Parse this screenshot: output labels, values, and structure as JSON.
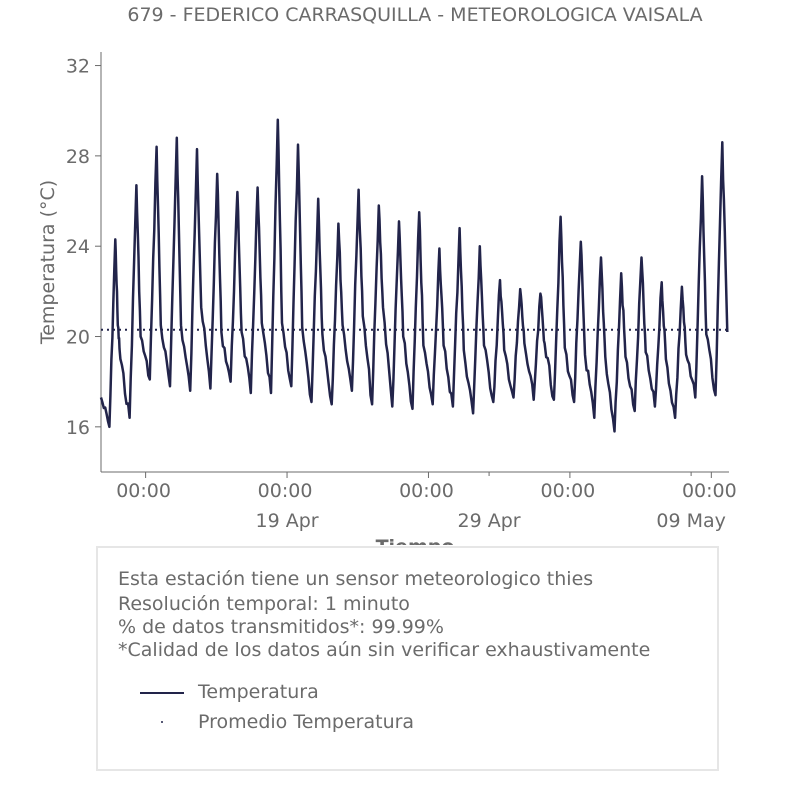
{
  "chart_data": {
    "type": "line",
    "title": "679 - FEDERICO CARRASQUILLA - METEOROLOGICA VAISALA",
    "xlabel": "Tiempo",
    "ylabel": "Temperatura (°C)",
    "ylim": [
      14,
      32.6
    ],
    "yticks": [
      16,
      20,
      24,
      28,
      32
    ],
    "xlim": [
      "2025-04-09T19:00",
      "2025-05-10T21:00"
    ],
    "xticks": [
      {
        "at": "2025-04-12T00:00",
        "label": "00:00",
        "sublabel": ""
      },
      {
        "at": "2025-04-19T00:00",
        "label": "00:00",
        "sublabel": "19 Apr"
      },
      {
        "at": "2025-04-26T00:00",
        "label": "00:00",
        "sublabel": ""
      },
      {
        "at": "2025-05-03T00:00",
        "label": "00:00",
        "sublabel": ""
      },
      {
        "at": "2025-05-10T00:00",
        "label": "00:00",
        "sublabel": ""
      }
    ],
    "extra_date_labels": [
      {
        "at": "2025-04-29T00:00",
        "label": "29 Apr"
      },
      {
        "at": "2025-05-09T00:00",
        "label": "09 May"
      }
    ],
    "series": [
      {
        "name": "Temperatura",
        "color": "#22244a",
        "style": "solid",
        "x": [
          "2025-04-09T19:00",
          "2025-04-10T05:00",
          "2025-04-10T12:00",
          "2025-04-10T15:00",
          "2025-04-10T18:00",
          "2025-04-11T05:00",
          "2025-04-11T13:00",
          "2025-04-11T18:00",
          "2025-04-12T05:00",
          "2025-04-12T13:00",
          "2025-04-12T18:00",
          "2025-04-13T05:00",
          "2025-04-13T13:00",
          "2025-04-13T18:00",
          "2025-04-14T05:00",
          "2025-04-14T13:00",
          "2025-04-14T18:00",
          "2025-04-15T05:00",
          "2025-04-15T13:00",
          "2025-04-15T18:00",
          "2025-04-16T05:00",
          "2025-04-16T13:00",
          "2025-04-16T18:00",
          "2025-04-17T05:00",
          "2025-04-17T13:00",
          "2025-04-17T18:00",
          "2025-04-18T05:00",
          "2025-04-18T13:00",
          "2025-04-18T18:00",
          "2025-04-19T05:00",
          "2025-04-19T13:00",
          "2025-04-19T18:00",
          "2025-04-20T05:00",
          "2025-04-20T13:00",
          "2025-04-20T18:00",
          "2025-04-21T05:00",
          "2025-04-21T13:00",
          "2025-04-21T18:00",
          "2025-04-22T05:00",
          "2025-04-22T13:00",
          "2025-04-22T18:00",
          "2025-04-23T05:00",
          "2025-04-23T13:00",
          "2025-04-23T18:00",
          "2025-04-24T05:00",
          "2025-04-24T13:00",
          "2025-04-24T18:00",
          "2025-04-25T05:00",
          "2025-04-25T13:00",
          "2025-04-25T18:00",
          "2025-04-26T05:00",
          "2025-04-26T13:00",
          "2025-04-26T18:00",
          "2025-04-27T05:00",
          "2025-04-27T13:00",
          "2025-04-27T18:00",
          "2025-04-28T05:00",
          "2025-04-28T13:00",
          "2025-04-28T18:00",
          "2025-04-29T05:00",
          "2025-04-29T13:00",
          "2025-04-29T18:00",
          "2025-04-30T05:00",
          "2025-04-30T13:00",
          "2025-04-30T18:00",
          "2025-05-01T05:00",
          "2025-05-01T13:00",
          "2025-05-01T18:00",
          "2025-05-02T05:00",
          "2025-05-02T13:00",
          "2025-05-02T18:00",
          "2025-05-03T05:00",
          "2025-05-03T13:00",
          "2025-05-03T18:00",
          "2025-05-04T05:00",
          "2025-05-04T13:00",
          "2025-05-04T18:00",
          "2025-05-05T05:00",
          "2025-05-05T13:00",
          "2025-05-05T18:00",
          "2025-05-06T05:00",
          "2025-05-06T13:00",
          "2025-05-06T18:00",
          "2025-05-07T05:00",
          "2025-05-07T13:00",
          "2025-05-07T18:00",
          "2025-05-08T05:00",
          "2025-05-08T13:00",
          "2025-05-08T18:00",
          "2025-05-09T05:00",
          "2025-05-09T13:00",
          "2025-05-09T18:00",
          "2025-05-10T05:00",
          "2025-05-10T13:00",
          "2025-05-10T19:00"
        ],
        "y": [
          17.3,
          16.0,
          24.3,
          20.5,
          19.0,
          16.4,
          26.7,
          20.0,
          18.1,
          28.4,
          20.5,
          17.8,
          28.8,
          20.5,
          17.6,
          28.3,
          21.3,
          17.7,
          27.2,
          20.2,
          18.0,
          26.4,
          20.2,
          17.5,
          26.6,
          20.6,
          17.5,
          29.6,
          20.6,
          17.8,
          28.5,
          20.4,
          17.1,
          26.1,
          20.1,
          17.0,
          25.0,
          20.5,
          17.6,
          26.5,
          20.9,
          17.0,
          25.8,
          21.3,
          16.9,
          25.1,
          20.0,
          16.8,
          25.5,
          19.6,
          17.0,
          23.9,
          19.6,
          16.9,
          24.8,
          19.4,
          16.6,
          24.0,
          19.6,
          17.1,
          22.5,
          19.4,
          17.3,
          22.1,
          19.7,
          17.2,
          21.9,
          19.7,
          17.2,
          25.3,
          19.5,
          17.1,
          24.2,
          19.2,
          16.4,
          23.5,
          19.1,
          15.8,
          22.8,
          19.1,
          16.7,
          23.5,
          19.3,
          16.9,
          22.4,
          19.0,
          16.4,
          22.2,
          19.2,
          17.3,
          27.1,
          20.1,
          17.4,
          28.6,
          20.2
        ]
      },
      {
        "name": "Promedio Temperatura",
        "color": "#22244a",
        "style": "dotted",
        "value": 20.3
      }
    ],
    "grid": false,
    "legend_position": "below"
  },
  "info": {
    "lines": [
      "Esta estación tiene un sensor meteorologico thies",
      "Resolución temporal: 1 minuto",
      "% de datos transmitidos*: 99.99%",
      "*Calidad de los datos aún sin verificar exhaustivamente"
    ],
    "legend": [
      {
        "label": "Temperatura"
      },
      {
        "label": "Promedio Temperatura"
      }
    ]
  }
}
